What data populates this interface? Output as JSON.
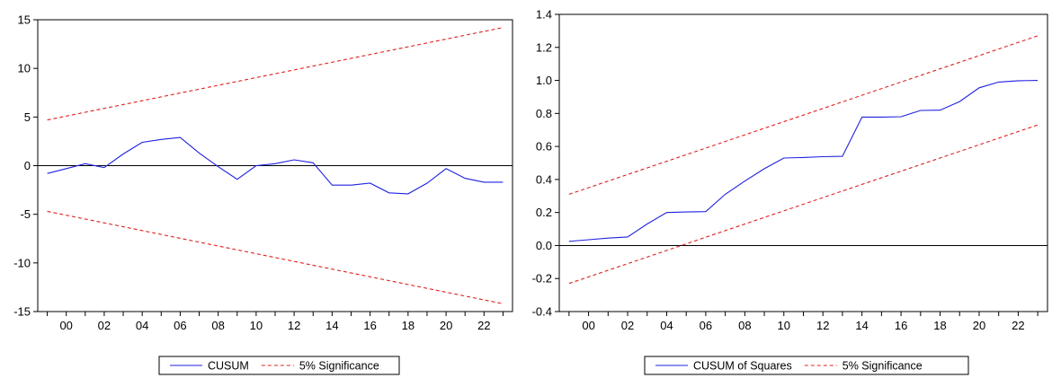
{
  "chart_data": [
    {
      "type": "line",
      "title": "",
      "xlabel": "",
      "ylabel": "",
      "x": [
        1999,
        2000,
        2001,
        2002,
        2003,
        2004,
        2005,
        2006,
        2007,
        2008,
        2009,
        2010,
        2011,
        2012,
        2013,
        2014,
        2015,
        2016,
        2017,
        2018,
        2019,
        2020,
        2021,
        2022,
        2023
      ],
      "xlim": [
        1998.5,
        2023.5
      ],
      "ylim": [
        -15,
        15
      ],
      "x_ticks": [
        {
          "x": 2000,
          "label": "00"
        },
        {
          "x": 2002,
          "label": "02"
        },
        {
          "x": 2004,
          "label": "04"
        },
        {
          "x": 2006,
          "label": "06"
        },
        {
          "x": 2008,
          "label": "08"
        },
        {
          "x": 2010,
          "label": "10"
        },
        {
          "x": 2012,
          "label": "12"
        },
        {
          "x": 2014,
          "label": "14"
        },
        {
          "x": 2016,
          "label": "16"
        },
        {
          "x": 2018,
          "label": "18"
        },
        {
          "x": 2020,
          "label": "20"
        },
        {
          "x": 2022,
          "label": "22"
        }
      ],
      "y_ticks": [
        {
          "y": 15,
          "label": "15"
        },
        {
          "y": 10,
          "label": "10"
        },
        {
          "y": 5,
          "label": "5"
        },
        {
          "y": 0,
          "label": "0"
        },
        {
          "y": -5,
          "label": "-5"
        },
        {
          "y": -10,
          "label": "-10"
        },
        {
          "y": -15,
          "label": "-15"
        }
      ],
      "reference_line": 0,
      "legend_position": "bottom-center",
      "series": [
        {
          "name": "CUSUM",
          "style": "solid",
          "color": "#2020e0",
          "values": [
            -0.8,
            -0.3,
            0.2,
            -0.2,
            1.2,
            2.4,
            2.7,
            2.9,
            1.3,
            -0.1,
            -1.4,
            0.0,
            0.2,
            0.6,
            0.3,
            -2.0,
            -2.0,
            -1.8,
            -2.8,
            -2.9,
            -1.8,
            -0.3,
            -1.3,
            -1.7,
            -1.7
          ]
        },
        {
          "name": "5% Significance",
          "style": "dashed",
          "color": "#e02020",
          "line_from": [
            1999,
            4.7
          ],
          "line_to": [
            2023,
            14.2
          ]
        },
        {
          "name": "",
          "style": "dashed",
          "color": "#e02020",
          "line_from": [
            1999,
            -4.7
          ],
          "line_to": [
            2023,
            -14.2
          ]
        }
      ]
    },
    {
      "type": "line",
      "title": "",
      "xlabel": "",
      "ylabel": "",
      "x": [
        1999,
        2000,
        2001,
        2002,
        2003,
        2004,
        2005,
        2006,
        2007,
        2008,
        2009,
        2010,
        2011,
        2012,
        2013,
        2014,
        2015,
        2016,
        2017,
        2018,
        2019,
        2020,
        2021,
        2022,
        2023
      ],
      "xlim": [
        1998.5,
        2023.5
      ],
      "ylim": [
        -0.4,
        1.4
      ],
      "x_ticks": [
        {
          "x": 2000,
          "label": "00"
        },
        {
          "x": 2002,
          "label": "02"
        },
        {
          "x": 2004,
          "label": "04"
        },
        {
          "x": 2006,
          "label": "06"
        },
        {
          "x": 2008,
          "label": "08"
        },
        {
          "x": 2010,
          "label": "10"
        },
        {
          "x": 2012,
          "label": "12"
        },
        {
          "x": 2014,
          "label": "14"
        },
        {
          "x": 2016,
          "label": "16"
        },
        {
          "x": 2018,
          "label": "18"
        },
        {
          "x": 2020,
          "label": "20"
        },
        {
          "x": 2022,
          "label": "22"
        }
      ],
      "y_ticks": [
        {
          "y": 1.4,
          "label": "1.4"
        },
        {
          "y": 1.2,
          "label": "1.2"
        },
        {
          "y": 1.0,
          "label": "1.0"
        },
        {
          "y": 0.8,
          "label": "0.8"
        },
        {
          "y": 0.6,
          "label": "0.6"
        },
        {
          "y": 0.4,
          "label": "0.4"
        },
        {
          "y": 0.2,
          "label": "0.2"
        },
        {
          "y": 0.0,
          "label": "0.0"
        },
        {
          "y": -0.2,
          "label": "-0.2"
        },
        {
          "y": -0.4,
          "label": "-0.4"
        }
      ],
      "reference_line": 0,
      "legend_position": "bottom-center",
      "series": [
        {
          "name": "CUSUM of Squares",
          "style": "solid",
          "color": "#2020e0",
          "values": [
            0.025,
            0.035,
            0.045,
            0.052,
            0.13,
            0.2,
            0.203,
            0.205,
            0.31,
            0.39,
            0.465,
            0.53,
            0.533,
            0.538,
            0.54,
            0.778,
            0.778,
            0.78,
            0.818,
            0.82,
            0.872,
            0.955,
            0.99,
            0.998,
            1.0
          ]
        },
        {
          "name": "5% Significance",
          "style": "dashed",
          "color": "#e02020",
          "line_from": [
            1999,
            0.31
          ],
          "line_to": [
            2023,
            1.27
          ]
        },
        {
          "name": "",
          "style": "dashed",
          "color": "#e02020",
          "line_from": [
            1999,
            -0.23
          ],
          "line_to": [
            2023,
            0.73
          ]
        }
      ]
    }
  ]
}
